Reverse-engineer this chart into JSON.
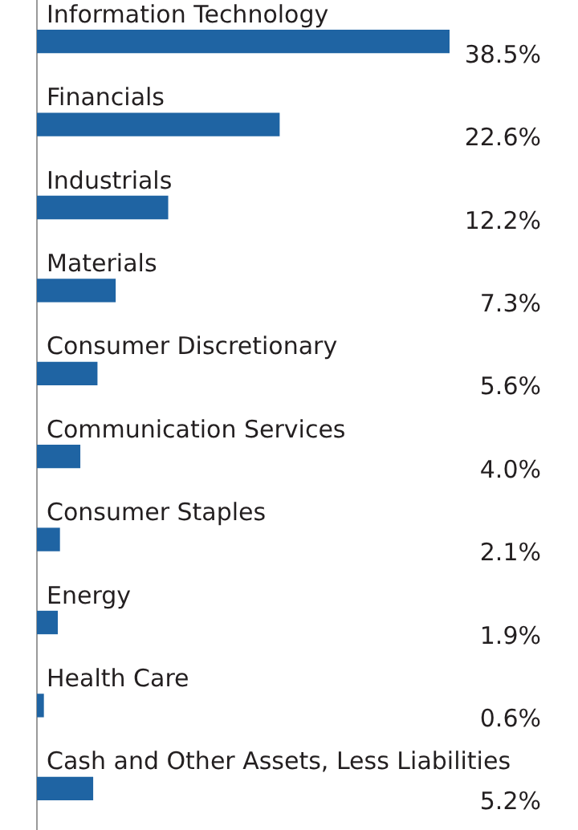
{
  "chart_data": {
    "type": "bar",
    "orientation": "horizontal",
    "categories": [
      "Information Technology",
      "Financials",
      "Industrials",
      "Materials",
      "Consumer Discretionary",
      "Communication Services",
      "Consumer Staples",
      "Energy",
      "Health Care",
      "Cash and Other Assets, Less Liabilities"
    ],
    "values": [
      38.5,
      22.6,
      12.2,
      7.3,
      5.6,
      4.0,
      2.1,
      1.9,
      0.6,
      5.2
    ],
    "value_labels": [
      "38.5%",
      "22.6%",
      "12.2%",
      "7.3%",
      "5.6%",
      "4.0%",
      "2.1%",
      "1.9%",
      "0.6%",
      "5.2%"
    ],
    "color": "#1f64a3",
    "grid": false,
    "legend": false
  }
}
